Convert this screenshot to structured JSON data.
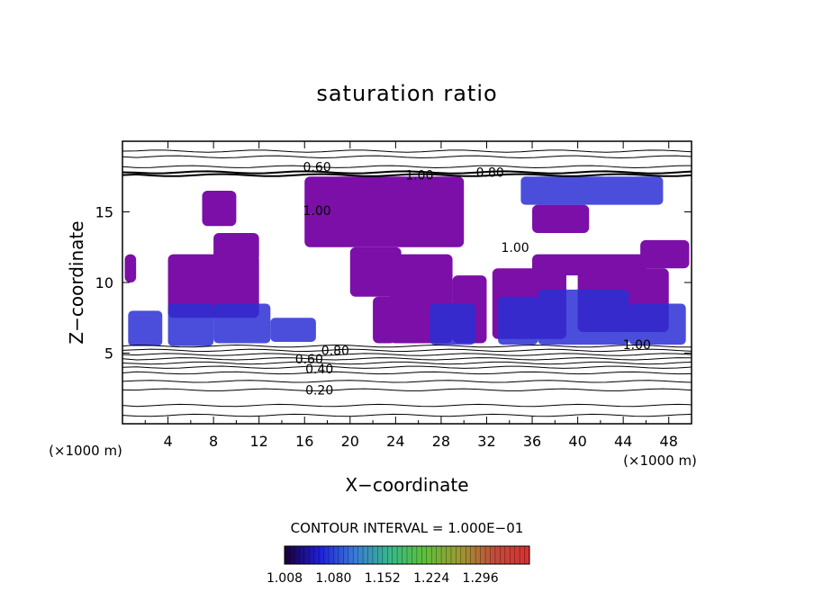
{
  "chart_data": {
    "type": "heatmap",
    "title": "saturation ratio",
    "xlabel": "X−coordinate",
    "ylabel": "Z−coordinate",
    "x_unit": "(×1000 m)",
    "y_unit": "(×1000 m)",
    "xlim": [
      0,
      50
    ],
    "ylim": [
      0,
      20
    ],
    "x_ticks": [
      "4",
      "8",
      "12",
      "16",
      "20",
      "24",
      "28",
      "32",
      "36",
      "40",
      "44",
      "48"
    ],
    "y_ticks": [
      "5",
      "10",
      "15"
    ],
    "contour_interval": "CONTOUR INTERVAL = 1.000E−01",
    "contour_labels": [
      {
        "text": "0.60",
        "x": 17.1,
        "y": 18.2
      },
      {
        "text": "1.00",
        "x": 26.1,
        "y": 17.6
      },
      {
        "text": "0.80",
        "x": 32.3,
        "y": 17.8
      },
      {
        "text": "1.00",
        "x": 17.1,
        "y": 15.1
      },
      {
        "text": "1.00",
        "x": 34.5,
        "y": 12.5
      },
      {
        "text": "0.80",
        "x": 18.7,
        "y": 5.2
      },
      {
        "text": "0.60",
        "x": 16.4,
        "y": 4.6
      },
      {
        "text": "0.40",
        "x": 17.3,
        "y": 3.9
      },
      {
        "text": "0.20",
        "x": 17.3,
        "y": 2.4
      },
      {
        "text": "1.00",
        "x": 45.2,
        "y": 5.6
      }
    ],
    "contour_levels_z": [
      0.6,
      1.3,
      2.4,
      3.0,
      3.6,
      4.0,
      4.3,
      4.6,
      4.9,
      5.2,
      5.5,
      17.6,
      17.8,
      18.2,
      18.9,
      19.3
    ],
    "colorbar": {
      "min": 1.008,
      "max": 1.368,
      "tick_labels": [
        "1.008",
        "1.080",
        "1.152",
        "1.224",
        "1.296"
      ],
      "colors": [
        "#1a0033",
        "#1f1fd6",
        "#3a7ad8",
        "#36b88a",
        "#5ec03a",
        "#9c9a33",
        "#c24b3a",
        "#d83030"
      ]
    },
    "regions_deep_blue": [
      [
        0.5,
        5.5,
        3.5,
        8.0
      ],
      [
        4.0,
        5.5,
        8.0,
        8.5
      ],
      [
        8.0,
        5.7,
        13.0,
        8.5
      ],
      [
        13.0,
        5.8,
        17.0,
        7.5
      ],
      [
        27.0,
        5.6,
        31.0,
        8.5
      ],
      [
        33.0,
        5.6,
        36.5,
        9.0
      ],
      [
        36.5,
        5.6,
        44.5,
        9.5
      ],
      [
        44.5,
        5.6,
        49.5,
        8.5
      ],
      [
        35.0,
        15.5,
        47.5,
        17.5
      ]
    ],
    "regions_purple": [
      [
        4.0,
        7.5,
        12.0,
        12.0
      ],
      [
        8.0,
        11.5,
        12.0,
        13.5
      ],
      [
        16.0,
        12.5,
        30.0,
        17.5
      ],
      [
        20.0,
        9.0,
        24.5,
        12.5
      ],
      [
        23.5,
        5.7,
        29.0,
        12.0
      ],
      [
        29.0,
        5.7,
        32.0,
        10.5
      ],
      [
        7.0,
        14.0,
        10.0,
        16.5
      ],
      [
        22.0,
        5.7,
        24.0,
        9.0
      ],
      [
        32.5,
        6.0,
        39.0,
        11.0
      ],
      [
        36.0,
        10.5,
        46.0,
        12.0
      ],
      [
        40.0,
        6.5,
        48.0,
        11.0
      ],
      [
        45.5,
        11.0,
        49.8,
        13.0
      ],
      [
        36.0,
        13.5,
        41.0,
        15.5
      ],
      [
        0.2,
        10.0,
        1.2,
        12.0
      ]
    ]
  }
}
